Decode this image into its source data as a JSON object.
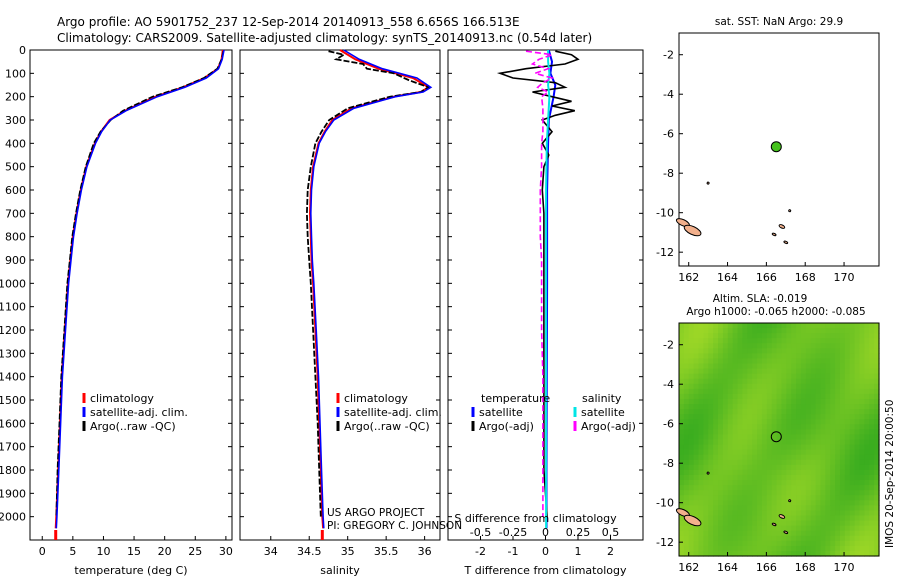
{
  "header": {
    "line1": "Argo profile: AO 5901752_237 12-Sep-2014 20140913_558 6.656S 166.513E",
    "line2": "Climatology: CARS2009. Satellite-adjusted climatology: synTS_20140913.nc (0.54d later)"
  },
  "credits": {
    "project": "US ARGO PROJECT",
    "pi": "PI: GREGORY C. JOHNSON",
    "imos_stamp": "IMOS 20-Sep-2014 20:00:50"
  },
  "colors": {
    "climatology": "#ff0000",
    "satellite": "#0000ff",
    "argo": "#000000",
    "sal_satellite": "#00e5e5",
    "sal_argo": "#ff00ff",
    "sla_green": "#44c21c",
    "coast_fill": "#f2b08c"
  },
  "chart_data": [
    {
      "type": "line",
      "name": "temperature",
      "xlabel": "temperature (deg C)",
      "ylabel": "",
      "xlim": [
        -2,
        31
      ],
      "ylim": [
        2100,
        0
      ],
      "xticks": [
        0,
        5,
        10,
        15,
        20,
        25,
        30
      ],
      "xticklabels": [
        "0",
        "5",
        "10",
        "15",
        "20",
        "25",
        "30"
      ],
      "yticks": [
        0,
        100,
        200,
        300,
        400,
        500,
        600,
        700,
        800,
        900,
        1000,
        1100,
        1200,
        1300,
        1400,
        1500,
        1600,
        1700,
        1800,
        1900,
        2000
      ],
      "yticklabels": [
        "0",
        "100",
        "200",
        "300",
        "400",
        "500",
        "600",
        "700",
        "800",
        "900",
        "1000",
        "1100",
        "1200",
        "1300",
        "1400",
        "1500",
        "1600",
        "1700",
        "1800",
        "1900",
        "2000"
      ],
      "legend": [
        "climatology",
        "satellite-adj. clim.",
        "Argo(..raw -QC)"
      ],
      "series": [
        {
          "name": "climatology",
          "depth": [
            0,
            40,
            80,
            120,
            160,
            200,
            260,
            300,
            350,
            400,
            500,
            600,
            700,
            800,
            900,
            1000,
            1200,
            1400,
            1600,
            1800,
            2000,
            2050
          ],
          "values": [
            29.5,
            29.3,
            28.7,
            26.5,
            23.0,
            18.5,
            13.5,
            11.0,
            9.6,
            8.6,
            7.2,
            6.3,
            5.6,
            5.0,
            4.6,
            4.2,
            3.7,
            3.2,
            2.9,
            2.6,
            2.3,
            2.2
          ]
        },
        {
          "name": "satellite-adj. clim.",
          "depth": [
            0,
            40,
            80,
            120,
            160,
            200,
            260,
            300,
            350,
            400,
            500,
            600,
            700,
            800,
            900,
            1000,
            1200,
            1400,
            1600,
            1800,
            2000,
            2050
          ],
          "values": [
            29.7,
            29.4,
            28.8,
            26.8,
            23.3,
            18.8,
            13.7,
            11.1,
            9.7,
            8.7,
            7.3,
            6.4,
            5.7,
            5.1,
            4.7,
            4.3,
            3.8,
            3.3,
            3.0,
            2.7,
            2.4,
            2.3
          ]
        },
        {
          "name": "Argo(..raw -QC)",
          "depth": [
            5,
            40,
            80,
            120,
            160,
            200,
            260,
            300,
            350,
            400,
            500,
            600,
            700,
            800,
            900,
            1000,
            1200,
            1400,
            1600,
            1800,
            2000
          ],
          "values": [
            29.6,
            29.3,
            28.6,
            26.4,
            22.8,
            18.0,
            13.2,
            11.2,
            9.5,
            8.4,
            7.1,
            6.2,
            5.5,
            4.9,
            4.5,
            4.1,
            3.6,
            3.1,
            2.8,
            2.5,
            2.3
          ]
        }
      ]
    },
    {
      "type": "line",
      "name": "salinity",
      "xlabel": "salinity",
      "xlim": [
        33.6,
        36.2
      ],
      "ylim": [
        2100,
        0
      ],
      "xticks": [
        34,
        34.5,
        35,
        35.5,
        36
      ],
      "xticklabels": [
        "34",
        "34.5",
        "35",
        "35.5",
        "36"
      ],
      "legend": [
        "climatology",
        "satellite-adj. clim.",
        "Argo(..raw -QC)"
      ],
      "series": [
        {
          "name": "climatology",
          "depth": [
            0,
            40,
            80,
            120,
            160,
            180,
            200,
            250,
            300,
            350,
            400,
            500,
            600,
            700,
            800,
            900,
            1000,
            1200,
            1400,
            1600,
            1800,
            2000,
            2050
          ],
          "values": [
            34.9,
            35.1,
            35.4,
            35.85,
            36.05,
            35.95,
            35.6,
            35.05,
            34.8,
            34.7,
            34.62,
            34.55,
            34.52,
            34.51,
            34.52,
            34.53,
            34.55,
            34.58,
            34.61,
            34.63,
            34.65,
            34.67,
            34.68
          ]
        },
        {
          "name": "satellite-adj. clim.",
          "depth": [
            0,
            40,
            80,
            120,
            160,
            180,
            200,
            250,
            300,
            350,
            400,
            500,
            600,
            700,
            800,
            900,
            1000,
            1200,
            1400,
            1600,
            1800,
            2000,
            2050
          ],
          "values": [
            34.95,
            35.15,
            35.45,
            35.9,
            36.08,
            35.98,
            35.62,
            35.08,
            34.82,
            34.71,
            34.63,
            34.56,
            34.53,
            34.52,
            34.53,
            34.54,
            34.56,
            34.59,
            34.62,
            34.64,
            34.66,
            34.68,
            34.69
          ]
        },
        {
          "name": "Argo(..raw -QC)",
          "depth": [
            5,
            20,
            40,
            60,
            80,
            100,
            130,
            160,
            180,
            200,
            250,
            300,
            350,
            400,
            500,
            600,
            700,
            800,
            900,
            1000,
            1200,
            1400,
            1600,
            1800,
            2000
          ],
          "values": [
            34.75,
            34.95,
            34.85,
            35.2,
            35.25,
            35.6,
            35.8,
            36.05,
            35.95,
            35.55,
            35.0,
            34.76,
            34.66,
            34.58,
            34.52,
            34.48,
            34.47,
            34.48,
            34.5,
            34.52,
            34.55,
            34.58,
            34.61,
            34.63,
            34.65
          ]
        }
      ]
    },
    {
      "type": "line",
      "name": "differences",
      "xlabel": "T difference from climatology",
      "xlabel2": "S difference from climatology",
      "xlim": [
        -3,
        3
      ],
      "xlim_salinity": [
        -0.75,
        0.75
      ],
      "ylim": [
        2100,
        0
      ],
      "xticks": [
        -2,
        -1,
        0,
        1,
        2
      ],
      "xticklabels": [
        "-2",
        "-1",
        "0",
        "1",
        "2"
      ],
      "xticks2": [
        -0.5,
        -0.25,
        0,
        0.25,
        0.5
      ],
      "xticklabels2": [
        "-0.5",
        "-0.25",
        "0",
        "0.25",
        "0.5"
      ],
      "legend_titles": [
        "temperature",
        "salinity"
      ],
      "legend": [
        "satellite",
        "Argo(-adj)",
        "satellite",
        "Argo(-adj)"
      ],
      "series": [
        {
          "name": "T satellite",
          "depth": [
            0,
            50,
            100,
            150,
            200,
            300,
            400,
            600,
            800,
            1000,
            1400,
            1800,
            2050
          ],
          "values": [
            0.1,
            0.2,
            0.15,
            0.3,
            0.25,
            0.1,
            0.08,
            0.05,
            0.05,
            0.05,
            0.04,
            0.03,
            0.03
          ]
        },
        {
          "name": "T Argo(-adj)",
          "depth": [
            5,
            20,
            40,
            60,
            80,
            100,
            120,
            140,
            160,
            180,
            200,
            220,
            240,
            260,
            280,
            300,
            350,
            400,
            450,
            500,
            600,
            700,
            800,
            900,
            1000,
            1200,
            1400,
            1600,
            1800,
            2000
          ],
          "values": [
            0.3,
            0.8,
            1.0,
            0.6,
            -0.6,
            -1.4,
            -1.0,
            0.3,
            0.6,
            -0.4,
            0.2,
            0.8,
            0.2,
            0.9,
            0.3,
            -0.1,
            0.2,
            -0.1,
            0.1,
            -0.05,
            -0.1,
            -0.05,
            -0.05,
            -0.05,
            -0.05,
            -0.05,
            -0.05,
            -0.05,
            -0.05,
            0.05
          ]
        },
        {
          "name": "S satellite",
          "depth": [
            0,
            50,
            100,
            150,
            200,
            300,
            400,
            600,
            800,
            1000,
            1400,
            1800,
            2050
          ],
          "values": [
            0.02,
            0.02,
            0.03,
            0.02,
            0.03,
            0.02,
            0.01,
            0.005,
            0.005,
            0.005,
            0.005,
            0.005,
            0.005
          ]
        },
        {
          "name": "S Argo(-adj)",
          "depth": [
            5,
            20,
            40,
            60,
            80,
            100,
            120,
            140,
            160,
            180,
            200,
            250,
            300,
            350,
            400,
            500,
            600,
            700,
            800,
            900,
            1000,
            1200,
            1400,
            1600,
            1800,
            2000
          ],
          "values": [
            -0.15,
            0.05,
            -0.05,
            -0.1,
            0.02,
            -0.08,
            0.05,
            -0.02,
            -0.06,
            0.02,
            -0.03,
            -0.02,
            -0.02,
            -0.02,
            -0.03,
            -0.03,
            -0.04,
            -0.04,
            -0.04,
            -0.03,
            -0.03,
            -0.03,
            -0.02,
            -0.02,
            -0.02,
            -0.02
          ]
        }
      ]
    },
    {
      "type": "scatter",
      "name": "sst-map",
      "title": "sat. SST: NaN Argo: 29.9",
      "xlim": [
        161.5,
        171.8
      ],
      "ylim": [
        -12.7,
        -0.9
      ],
      "xticks": [
        162,
        164,
        166,
        168,
        170
      ],
      "xticklabels": [
        "162",
        "164",
        "166",
        "168",
        "170"
      ],
      "yticks": [
        -2,
        -4,
        -6,
        -8,
        -10,
        -12
      ],
      "yticklabels": [
        "-2",
        "-4",
        "-6",
        "-8",
        "-10",
        "-12"
      ],
      "points": [
        {
          "lon": 166.513,
          "lat": -6.656
        }
      ]
    },
    {
      "type": "heatmap",
      "name": "sla-map",
      "title": "Altim. SLA: -0.019",
      "subtitle": "Argo h1000: -0.065 h2000: -0.085",
      "xlim": [
        161.5,
        171.8
      ],
      "ylim": [
        -12.7,
        -0.9
      ],
      "xticks": [
        162,
        164,
        166,
        168,
        170
      ],
      "xticklabels": [
        "162",
        "164",
        "166",
        "168",
        "170"
      ],
      "yticks": [
        -2,
        -4,
        -6,
        -8,
        -10,
        -12
      ],
      "yticklabels": [
        "-2",
        "-4",
        "-6",
        "-8",
        "-10",
        "-12"
      ],
      "points": [
        {
          "lon": 166.513,
          "lat": -6.656
        }
      ]
    }
  ]
}
